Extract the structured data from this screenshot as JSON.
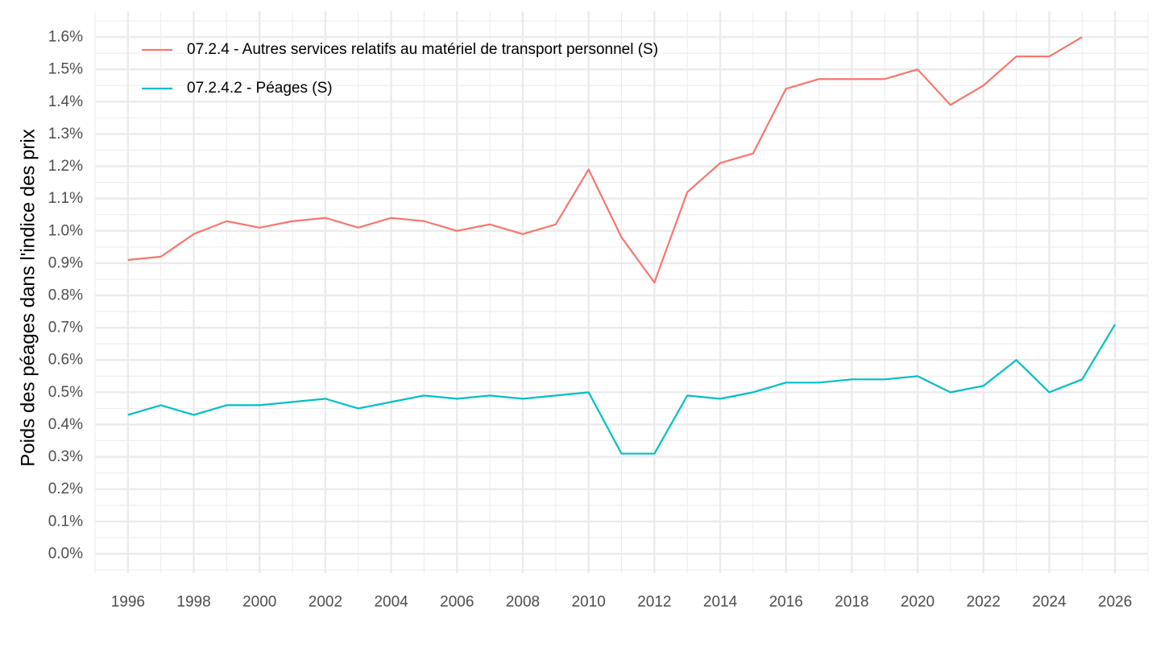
{
  "chart_data": {
    "type": "line",
    "title": "",
    "xlabel": "",
    "ylabel": "Poids des péages dans l'indice des prix",
    "xlim": [
      1995,
      2027
    ],
    "ylim": [
      -0.0006,
      0.0168
    ],
    "x_ticks": [
      1996,
      1998,
      2000,
      2002,
      2004,
      2006,
      2008,
      2010,
      2012,
      2014,
      2016,
      2018,
      2020,
      2022,
      2024,
      2026
    ],
    "x_tick_labels": [
      "1996",
      "1998",
      "2000",
      "2002",
      "2004",
      "2006",
      "2008",
      "2010",
      "2012",
      "2014",
      "2016",
      "2018",
      "2020",
      "2022",
      "2024",
      "2026"
    ],
    "y_ticks": [
      0.0,
      0.001,
      0.002,
      0.003,
      0.004,
      0.005,
      0.006,
      0.007,
      0.008,
      0.009,
      0.01,
      0.011,
      0.012,
      0.013,
      0.014,
      0.015,
      0.016
    ],
    "y_tick_labels": [
      "0.0%",
      "0.1%",
      "0.2%",
      "0.3%",
      "0.4%",
      "0.5%",
      "0.6%",
      "0.7%",
      "0.8%",
      "0.9%",
      "1.0%",
      "1.1%",
      "1.2%",
      "1.3%",
      "1.4%",
      "1.5%",
      "1.6%"
    ],
    "grid": true,
    "legend_position": "top-left",
    "series": [
      {
        "name": "07.2.4 - Autres services relatifs au matériel de transport personnel (S)",
        "color": "#F8766D",
        "x": [
          1996,
          1997,
          1998,
          1999,
          2000,
          2001,
          2002,
          2003,
          2004,
          2005,
          2006,
          2007,
          2008,
          2009,
          2010,
          2011,
          2012,
          2013,
          2014,
          2015,
          2016,
          2017,
          2018,
          2019,
          2020,
          2021,
          2022,
          2023,
          2024,
          2025
        ],
        "values": [
          0.0091,
          0.0092,
          0.0099,
          0.0103,
          0.0101,
          0.0103,
          0.0104,
          0.0101,
          0.0104,
          0.0103,
          0.01,
          0.0102,
          0.0099,
          0.0102,
          0.0119,
          0.0098,
          0.0084,
          0.0112,
          0.0121,
          0.0124,
          0.0144,
          0.0147,
          0.0147,
          0.0147,
          0.015,
          0.0139,
          0.0145,
          0.0154,
          0.0154,
          0.016
        ]
      },
      {
        "name": "07.2.4.2 - Péages (S)",
        "color": "#00BFC4",
        "x": [
          1996,
          1997,
          1998,
          1999,
          2000,
          2001,
          2002,
          2003,
          2004,
          2005,
          2006,
          2007,
          2008,
          2009,
          2010,
          2011,
          2012,
          2013,
          2014,
          2015,
          2016,
          2017,
          2018,
          2019,
          2020,
          2021,
          2022,
          2023,
          2024,
          2025,
          2026
        ],
        "values": [
          0.0043,
          0.0046,
          0.0043,
          0.0046,
          0.0046,
          0.0047,
          0.0048,
          0.0045,
          0.0047,
          0.0049,
          0.0048,
          0.0049,
          0.0048,
          0.0049,
          0.005,
          0.0031,
          0.0031,
          0.0049,
          0.0048,
          0.005,
          0.0053,
          0.0053,
          0.0054,
          0.0054,
          0.0055,
          0.005,
          0.0052,
          0.006,
          0.005,
          0.0054,
          0.0071
        ]
      }
    ]
  }
}
